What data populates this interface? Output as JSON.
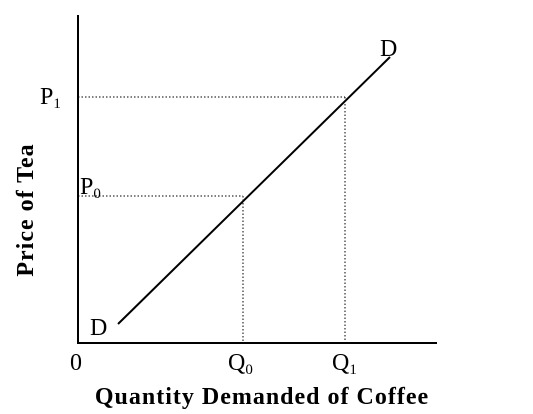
{
  "y_axis": {
    "title": "Price of Tea"
  },
  "x_axis": {
    "title": "Quantity Demanded of Coffee",
    "origin": "0"
  },
  "curve": {
    "label_top": "D",
    "label_bottom": "D"
  },
  "price_levels": [
    {
      "main": "P",
      "sub": "1"
    },
    {
      "main": "P",
      "sub": "0"
    }
  ],
  "quantity_levels": [
    {
      "main": "Q",
      "sub": "0"
    },
    {
      "main": "Q",
      "sub": "1"
    }
  ]
}
